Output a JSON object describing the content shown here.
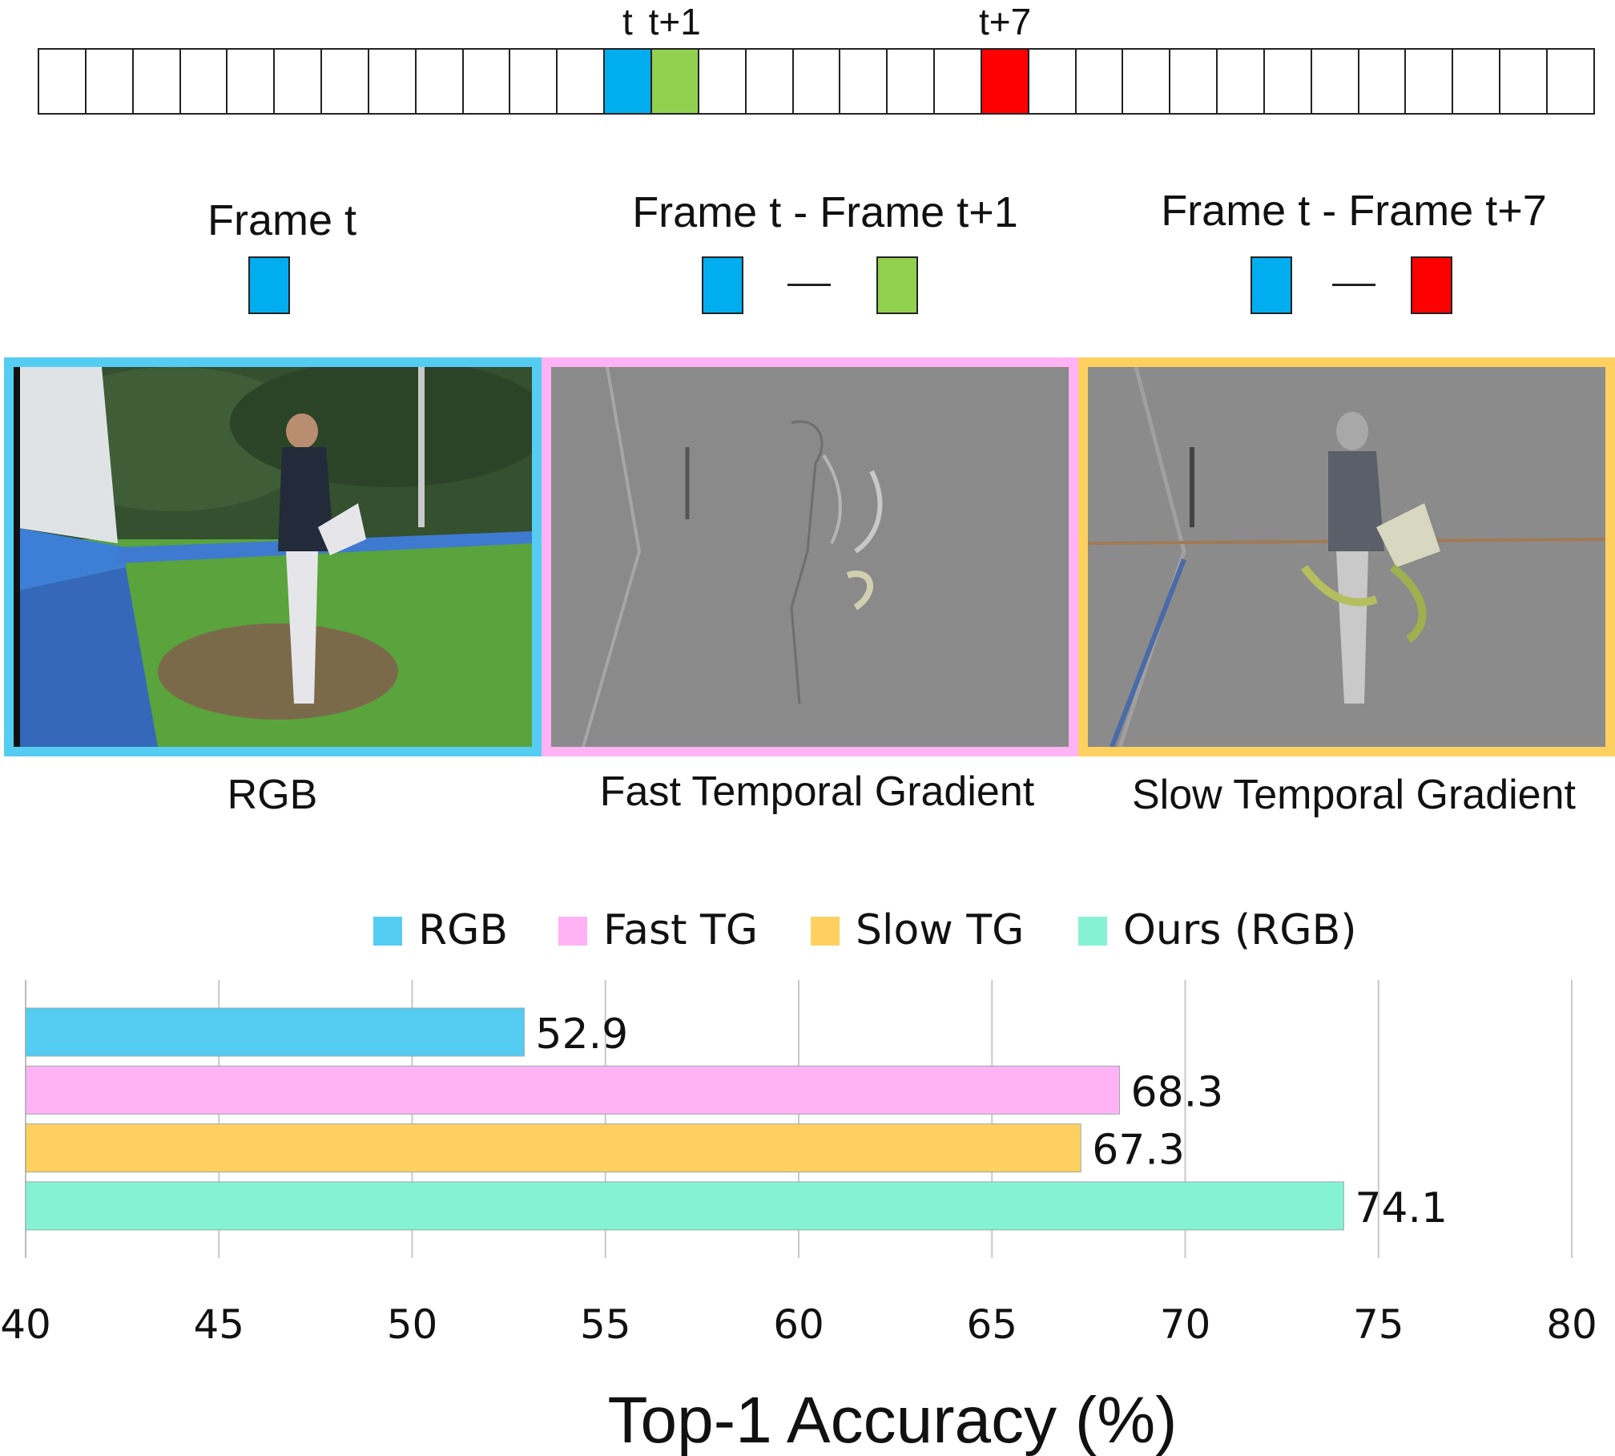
{
  "strip": {
    "cells": 33,
    "highlights": [
      {
        "index": 12,
        "color": "#00aeef",
        "label": "t"
      },
      {
        "index": 13,
        "color": "#92d050",
        "label": "t+1"
      },
      {
        "index": 20,
        "color": "#ff0000",
        "label": "t+7"
      }
    ]
  },
  "headers": {
    "frame_t": "Frame t",
    "fast_diff": "Frame t - Frame t+1",
    "slow_diff": "Frame t - Frame t+7"
  },
  "colors": {
    "blue": "#00aeef",
    "green": "#92d050",
    "red": "#ff0000",
    "rgb_border": "#55ccf2",
    "fast_border": "#ffb3f5",
    "slow_border": "#fdd060",
    "ours": "#86f2d4"
  },
  "panels": {
    "rgb": "RGB",
    "fast": "Fast Temporal Gradient",
    "slow": "Slow Temporal Gradient"
  },
  "chart_data": {
    "type": "bar",
    "orientation": "horizontal",
    "categories": [
      "RGB",
      "Fast TG",
      "Slow TG",
      "Ours (RGB)"
    ],
    "values": [
      52.9,
      68.3,
      67.3,
      74.1
    ],
    "value_labels": [
      "52.9",
      "68.3",
      "67.3",
      "74.1"
    ],
    "colors": [
      "#55ccf2",
      "#ffb3f5",
      "#fdd060",
      "#86f2d4"
    ],
    "legend": [
      "RGB",
      "Fast TG",
      "Slow TG",
      "Ours (RGB)"
    ],
    "xlim": [
      40,
      80
    ],
    "xticks": [
      40,
      45,
      50,
      55,
      60,
      65,
      70,
      75,
      80
    ],
    "xlabel": "Top-1 Accuracy (%)",
    "grid": true,
    "legend_position": "top"
  }
}
